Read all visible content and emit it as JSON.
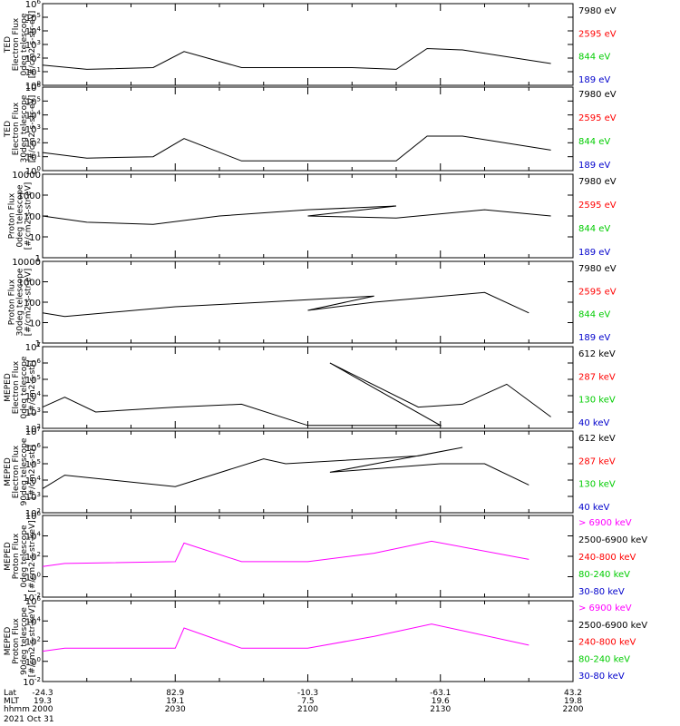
{
  "chart_data": [
    {
      "type": "line",
      "panel": "ted-electron-0deg",
      "ylabel_lines": [
        "TED",
        "Electron Flux",
        "0deg telescope",
        "[#/cm2-s-str-eV]"
      ],
      "y_scale": "log",
      "ylim": [
        1,
        1000000
      ],
      "y_ticks": [
        "10^0",
        "10^1",
        "10^2",
        "10^3",
        "10^4",
        "10^5",
        "10^6"
      ],
      "grid": false,
      "legend_position": "right",
      "series": [
        {
          "name": "7980 eV",
          "color": "#000000"
        },
        {
          "name": "2595 eV",
          "color": "#ff0000"
        },
        {
          "name": "844 eV",
          "color": "#00cc00"
        },
        {
          "name": "189 eV",
          "color": "#0000cc"
        }
      ],
      "x": [
        2000,
        2010,
        2025,
        2032,
        2045,
        2110,
        2120,
        2127,
        2135,
        2155
      ],
      "values": [
        [
          30,
          15,
          20,
          300,
          20,
          20,
          15,
          500,
          400,
          40
        ]
      ]
    },
    {
      "type": "line",
      "panel": "ted-electron-30deg",
      "ylabel_lines": [
        "TED",
        "Electron Flux",
        "30deg telescope",
        "[#/cm2-s-str-eV]"
      ],
      "y_scale": "log",
      "ylim": [
        1,
        1000000
      ],
      "y_ticks": [
        "10^0",
        "10^1",
        "10^2",
        "10^3",
        "10^4",
        "10^5",
        "10^6"
      ],
      "grid": false,
      "legend_position": "right",
      "series": [
        {
          "name": "7980 eV",
          "color": "#000000"
        },
        {
          "name": "2595 eV",
          "color": "#ff0000"
        },
        {
          "name": "844 eV",
          "color": "#00cc00"
        },
        {
          "name": "189 eV",
          "color": "#0000cc"
        }
      ],
      "x": [
        2000,
        2010,
        2025,
        2032,
        2045,
        2110,
        2120,
        2127,
        2135,
        2155
      ],
      "values": [
        [
          20,
          8,
          10,
          200,
          5,
          5,
          5,
          300,
          300,
          30
        ]
      ]
    },
    {
      "type": "line",
      "panel": "ted-proton-0deg",
      "ylabel_lines": [
        "Proton Flux",
        "0deg telescope",
        "[#/cm2-s-str-eV]"
      ],
      "y_scale": "log",
      "ylim": [
        1,
        10000
      ],
      "y_ticks": [
        "1",
        "10",
        "100",
        "1000",
        "10000"
      ],
      "grid": false,
      "legend_position": "right",
      "series": [
        {
          "name": "7980 eV",
          "color": "#000000"
        },
        {
          "name": "2595 eV",
          "color": "#ff0000"
        },
        {
          "name": "844 eV",
          "color": "#00cc00"
        },
        {
          "name": "189 eV",
          "color": "#0000cc"
        }
      ],
      "x": [
        2000,
        2010,
        2025,
        2040,
        2060,
        2080,
        2100,
        2120,
        2140,
        2155
      ],
      "values": [
        [
          100,
          50,
          40,
          100,
          200,
          300,
          100,
          80,
          200,
          100
        ]
      ]
    },
    {
      "type": "line",
      "panel": "ted-proton-30deg",
      "ylabel_lines": [
        "Proton Flux",
        "30deg telescope",
        "[#/cm2-s-str-eV]"
      ],
      "y_scale": "log",
      "ylim": [
        1,
        10000
      ],
      "y_ticks": [
        "1",
        "10",
        "100",
        "1000",
        "10000"
      ],
      "grid": false,
      "legend_position": "right",
      "series": [
        {
          "name": "7980 eV",
          "color": "#000000"
        },
        {
          "name": "2595 eV",
          "color": "#ff0000"
        },
        {
          "name": "844 eV",
          "color": "#00cc00"
        },
        {
          "name": "189 eV",
          "color": "#0000cc"
        }
      ],
      "x": [
        2000,
        2005,
        2030,
        2050,
        2075,
        2100,
        2115,
        2140,
        2150
      ],
      "values": [
        [
          30,
          20,
          60,
          100,
          200,
          40,
          100,
          300,
          30
        ]
      ]
    },
    {
      "type": "line",
      "panel": "meped-electron-0deg",
      "ylabel_lines": [
        "MEPED",
        "Electron Flux",
        "0deg telescope",
        "[#/cm2-s-str]"
      ],
      "y_scale": "log",
      "ylim": [
        100,
        10000000
      ],
      "y_ticks": [
        "10^2",
        "10^3",
        "10^4",
        "10^5",
        "10^6",
        "10^7"
      ],
      "grid": false,
      "legend_position": "right",
      "series": [
        {
          "name": "612 keV",
          "color": "#000000"
        },
        {
          "name": "287 keV",
          "color": "#ff0000"
        },
        {
          "name": "130 keV",
          "color": "#00cc00"
        },
        {
          "name": "40 keV",
          "color": "#0000cc"
        }
      ],
      "x": [
        2000,
        2005,
        2012,
        2030,
        2045,
        2060,
        2090,
        2105,
        2125,
        2135,
        2145,
        2155
      ],
      "values": [
        [
          2000,
          8000,
          1000,
          2000,
          3000,
          150,
          150,
          1000000,
          2000,
          3000,
          50000,
          500
        ]
      ]
    },
    {
      "type": "line",
      "panel": "meped-electron-90deg",
      "ylabel_lines": [
        "MEPED",
        "Electron Flux",
        "90deg telescope",
        "[#/cm2-s-str]"
      ],
      "y_scale": "log",
      "ylim": [
        100,
        10000000
      ],
      "y_ticks": [
        "10^2",
        "10^3",
        "10^4",
        "10^5",
        "10^6",
        "10^7"
      ],
      "grid": false,
      "legend_position": "right",
      "series": [
        {
          "name": "612 keV",
          "color": "#000000"
        },
        {
          "name": "287 keV",
          "color": "#ff0000"
        },
        {
          "name": "130 keV",
          "color": "#00cc00"
        },
        {
          "name": "40 keV",
          "color": "#0000cc"
        }
      ],
      "x": [
        2000,
        2005,
        2030,
        2050,
        2055,
        2085,
        2095,
        2105,
        2130,
        2140,
        2150
      ],
      "values": [
        [
          3000,
          20000,
          4000,
          200000,
          100000,
          300000,
          1000000,
          30000,
          100000,
          100000,
          5000
        ]
      ]
    },
    {
      "type": "line",
      "panel": "meped-proton-0deg",
      "ylabel_lines": [
        "MEPED",
        "Proton Flux",
        "0deg telescope",
        "[#/cm2-s-str-keV]"
      ],
      "y_scale": "log",
      "ylim": [
        0.01,
        1000000
      ],
      "y_ticks": [
        "10^-2",
        "10^0",
        "10^2",
        "10^4",
        "10^6"
      ],
      "grid": false,
      "legend_position": "right",
      "series": [
        {
          "name": "> 6900 keV",
          "color": "#ff00ff"
        },
        {
          "name": "2500-6900 keV",
          "color": "#000000"
        },
        {
          "name": "240-800 keV",
          "color": "#ff0000"
        },
        {
          "name": "80-240 keV",
          "color": "#00cc00"
        },
        {
          "name": "30-80 keV",
          "color": "#0000cc"
        }
      ],
      "x": [
        2000,
        2005,
        2030,
        2032,
        2045,
        2100,
        2115,
        2128,
        2150
      ],
      "values": [
        [
          10,
          20,
          30,
          2000,
          30,
          30,
          200,
          3000,
          50
        ]
      ]
    },
    {
      "type": "line",
      "panel": "meped-proton-90deg",
      "ylabel_lines": [
        "MEPED",
        "Proton Flux",
        "90deg telescope",
        "[#/cm2-s-str-keV]"
      ],
      "y_scale": "log",
      "ylim": [
        0.01,
        1000000
      ],
      "y_ticks": [
        "10^-2",
        "10^0",
        "10^2",
        "10^4",
        "10^6"
      ],
      "grid": false,
      "legend_position": "right",
      "series": [
        {
          "name": "> 6900 keV",
          "color": "#ff00ff"
        },
        {
          "name": "2500-6900 keV",
          "color": "#000000"
        },
        {
          "name": "240-800 keV",
          "color": "#ff0000"
        },
        {
          "name": "80-240 keV",
          "color": "#00cc00"
        },
        {
          "name": "30-80 keV",
          "color": "#0000cc"
        }
      ],
      "x": [
        2000,
        2005,
        2030,
        2032,
        2045,
        2100,
        2115,
        2128,
        2150
      ],
      "values": [
        [
          10,
          20,
          20,
          2000,
          20,
          20,
          300,
          5000,
          40
        ]
      ]
    }
  ],
  "x_axis": {
    "rows": [
      {
        "label": "Lat",
        "values": [
          "-24.3",
          "82.9",
          "-10.3",
          "-63.1",
          "43.2"
        ]
      },
      {
        "label": "MLT",
        "values": [
          "19.3",
          "19.1",
          "7.5",
          "19.6",
          "19.8"
        ]
      },
      {
        "label": "hhmm",
        "values": [
          "2000",
          "2030",
          "2100",
          "2130",
          "2200"
        ]
      }
    ],
    "date": "2021 Oct 31"
  }
}
